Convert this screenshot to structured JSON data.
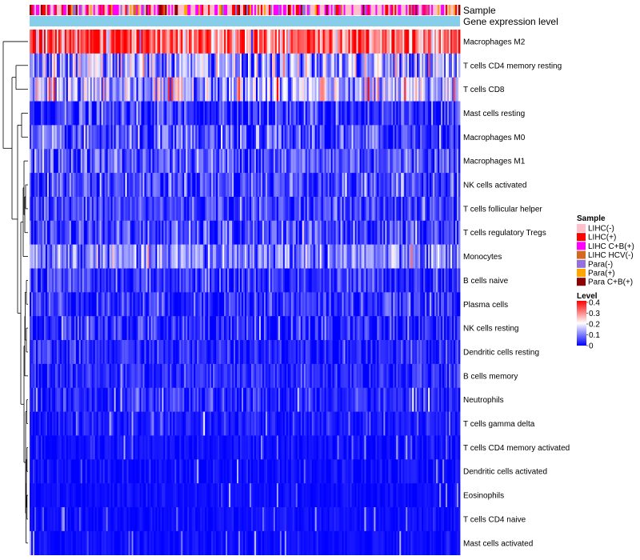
{
  "chart_data": {
    "type": "heatmap",
    "title": "",
    "annotation_rows": [
      "Sample",
      "Gene expression level"
    ],
    "annotation_colors": {
      "gene_expression_level": "#87ceeb"
    },
    "rows": [
      "Macrophages M2",
      "T cells CD4 memory resting",
      "T cells CD8",
      "Mast cells resting",
      "Macrophages M0",
      "Macrophages M1",
      "NK cells activated",
      "T cells follicular helper",
      "T cells regulatory  Tregs",
      "Monocytes",
      "B cells naive",
      "Plasma cells",
      "NK cells resting",
      "Dendritic cells resting",
      "B cells memory",
      "Neutrophils",
      "T cells gamma delta",
      "T cells CD4 memory activated",
      "Dendritic cells activated",
      "Eosinophils",
      "T cells CD4 naive",
      "Mast cells activated"
    ],
    "row_mean_levels": [
      0.33,
      0.12,
      0.14,
      0.04,
      0.05,
      0.07,
      0.06,
      0.05,
      0.05,
      0.1,
      0.04,
      0.04,
      0.03,
      0.03,
      0.03,
      0.03,
      0.02,
      0.01,
      0.01,
      0.01,
      0.01,
      0.01
    ],
    "row_spread": [
      0.09,
      0.08,
      0.09,
      0.05,
      0.06,
      0.05,
      0.05,
      0.04,
      0.05,
      0.06,
      0.04,
      0.04,
      0.05,
      0.03,
      0.03,
      0.03,
      0.02,
      0.015,
      0.015,
      0.01,
      0.01,
      0.01
    ],
    "num_samples": 270,
    "legend_sample": {
      "title": "Sample",
      "items": [
        {
          "label": "LIHC(-)",
          "color": "#ffc0cb"
        },
        {
          "label": "LIHC(+)",
          "color": "#ff0000"
        },
        {
          "label": "LIHC C+B(+)",
          "color": "#ff00ff"
        },
        {
          "label": "LIHC HCV(-)",
          "color": "#d2691e"
        },
        {
          "label": "Para(-)",
          "color": "#9370db"
        },
        {
          "label": "Para(+)",
          "color": "#ffa500"
        },
        {
          "label": "Para C+B(+)",
          "color": "#8b0000"
        }
      ]
    },
    "legend_level": {
      "title": "Level",
      "ticks": [
        "0.4",
        "0.3",
        "0.2",
        "0.1",
        "0"
      ],
      "range": [
        0,
        0.4
      ],
      "colors": [
        "#0000ff",
        "#ffffff",
        "#ff0000"
      ]
    }
  }
}
